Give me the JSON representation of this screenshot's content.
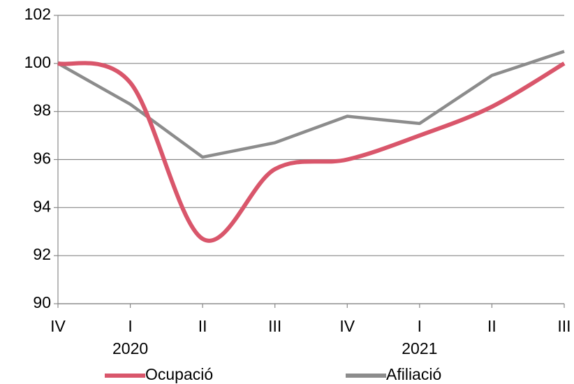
{
  "chart_data": {
    "type": "line",
    "categories": [
      "IV",
      "I",
      "II",
      "III",
      "IV",
      "I",
      "II",
      "III"
    ],
    "years": [
      null,
      "2020",
      null,
      null,
      null,
      "2021",
      null,
      null
    ],
    "series": [
      {
        "name": "Ocupació",
        "color": "#d9566b",
        "smooth": true,
        "values": [
          100,
          99.2,
          92.7,
          95.6,
          96.0,
          97.0,
          98.2,
          100.0
        ]
      },
      {
        "name": "Afiliació",
        "color": "#8c8c8c",
        "smooth": false,
        "values": [
          100,
          98.3,
          96.1,
          96.7,
          97.8,
          97.5,
          99.5,
          100.5
        ]
      }
    ],
    "ylim": [
      90,
      102
    ],
    "yticks": [
      90,
      92,
      94,
      96,
      98,
      100,
      102
    ],
    "grid": true,
    "legend": "bottom"
  }
}
